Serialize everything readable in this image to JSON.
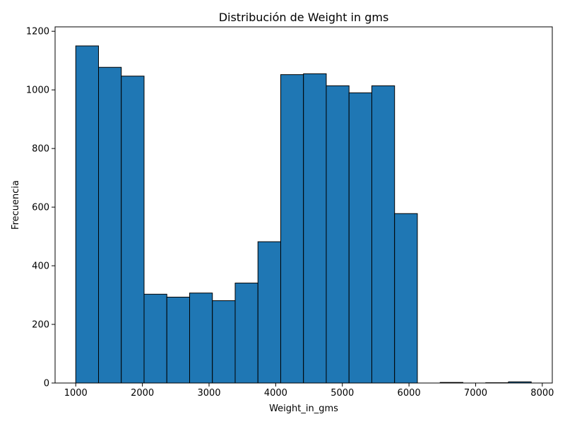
{
  "chart_data": {
    "type": "bar",
    "title": "Distribución de Weight in gms",
    "xlabel": "Weight_in_gms",
    "ylabel": "Frecuencia",
    "xlim": [
      690,
      8150
    ],
    "ylim": [
      0,
      1215
    ],
    "x_ticks": [
      1000,
      2000,
      3000,
      4000,
      5000,
      6000,
      7000,
      8000
    ],
    "y_ticks": [
      0,
      200,
      400,
      600,
      800,
      1000,
      1200
    ],
    "bin_start": 1000,
    "bin_width": 341.7,
    "values": [
      1150,
      1077,
      1047,
      303,
      293,
      307,
      281,
      341,
      482,
      1052,
      1055,
      1014,
      990,
      1014,
      578,
      0,
      2,
      0,
      1,
      4
    ],
    "bar_color": "#1f77b4",
    "edge_color": "#000000",
    "grid": false,
    "legend": "none"
  }
}
